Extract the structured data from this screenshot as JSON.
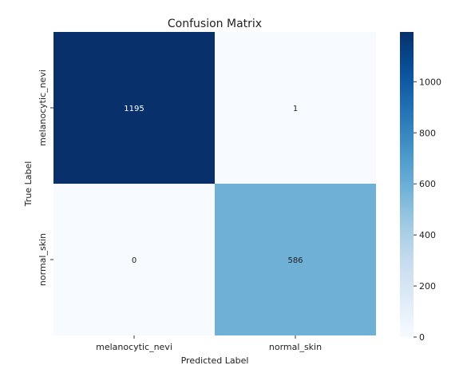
{
  "chart_data": {
    "type": "heatmap",
    "title": "Confusion Matrix",
    "xlabel": "Predicted Label",
    "ylabel": "True Label",
    "x_categories": [
      "melanocytic_nevi",
      "normal_skin"
    ],
    "y_categories": [
      "melanocytic_nevi",
      "normal_skin"
    ],
    "values": [
      [
        1195,
        1
      ],
      [
        0,
        586
      ]
    ],
    "cell_labels": [
      [
        "1195",
        "1"
      ],
      [
        "0",
        "586"
      ]
    ],
    "colormap": "Blues",
    "colorbar": {
      "min": 0,
      "max": 1195,
      "ticks": [
        0,
        200,
        400,
        600,
        800,
        1000
      ],
      "tick_labels": [
        "0",
        "200",
        "400",
        "600",
        "800",
        "1000"
      ]
    },
    "grid": false
  }
}
